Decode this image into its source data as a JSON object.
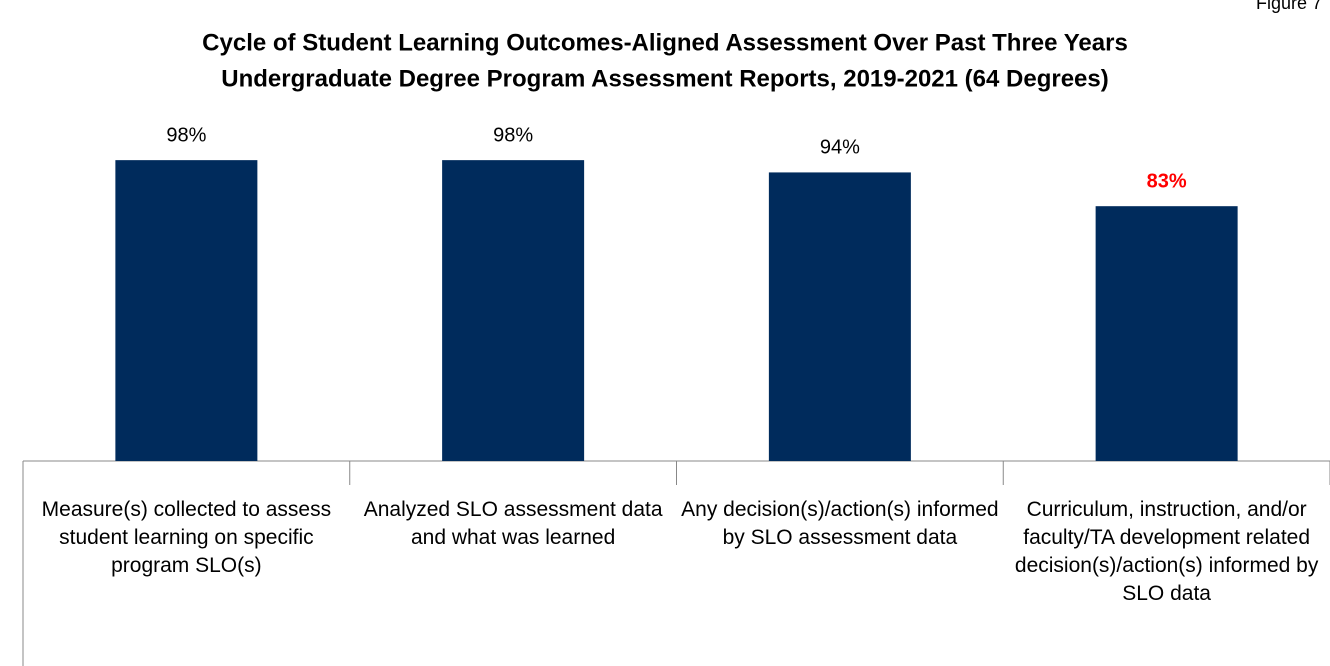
{
  "chart_data": {
    "type": "bar",
    "figure_label": "Figure 7",
    "title": [
      "Cycle of Student Learning Outcomes-Aligned Assessment Over Past Three Years",
      "Undergraduate Degree Program Assessment Reports, 2019-2021 (64 Degrees)"
    ],
    "categories": [
      "Measure(s) collected to assess student learning on specific program SLO(s)",
      "Analyzed SLO assessment data and what was learned",
      "Any decision(s)/action(s) informed by SLO assessment data",
      "Curriculum, instruction, and/or faculty/TA development related decision(s)/action(s) informed by SLO data"
    ],
    "values": [
      98,
      98,
      94,
      83
    ],
    "value_labels": [
      "98%",
      "98%",
      "94%",
      "83%"
    ],
    "value_label_colors": [
      "#000000",
      "#000000",
      "#000000",
      "#ff0000"
    ],
    "value_label_bold": [
      false,
      false,
      false,
      true
    ],
    "color": "#002b5c",
    "ylim": [
      0,
      100
    ]
  }
}
